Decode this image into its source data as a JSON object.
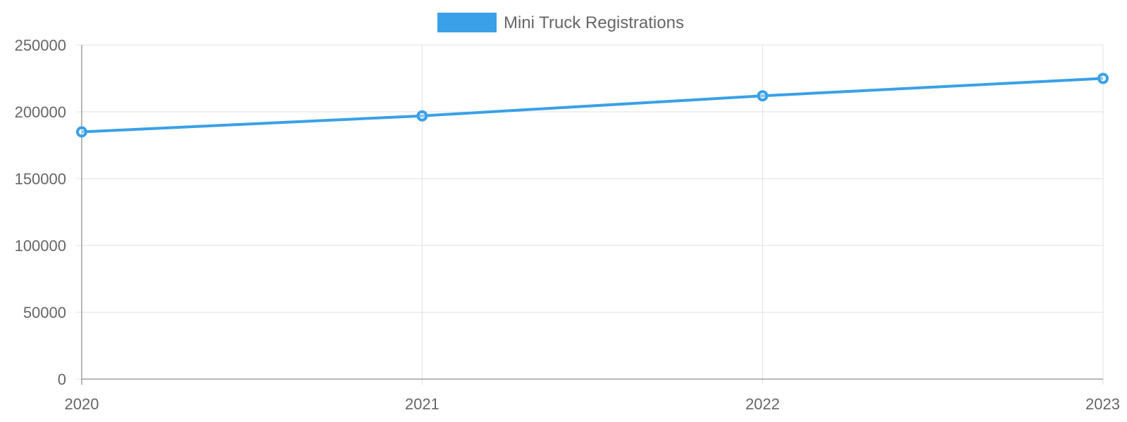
{
  "chart_data": {
    "type": "line",
    "categories": [
      "2020",
      "2021",
      "2022",
      "2023"
    ],
    "series": [
      {
        "name": "Mini Truck Registrations",
        "values": [
          185000,
          197000,
          212000,
          225000
        ],
        "color": "#3aa0e8"
      }
    ],
    "ylim": [
      0,
      250000
    ],
    "yticks": [
      "0",
      "50000",
      "100000",
      "150000",
      "200000",
      "250000"
    ],
    "grid": true,
    "legend_position": "top-center"
  }
}
